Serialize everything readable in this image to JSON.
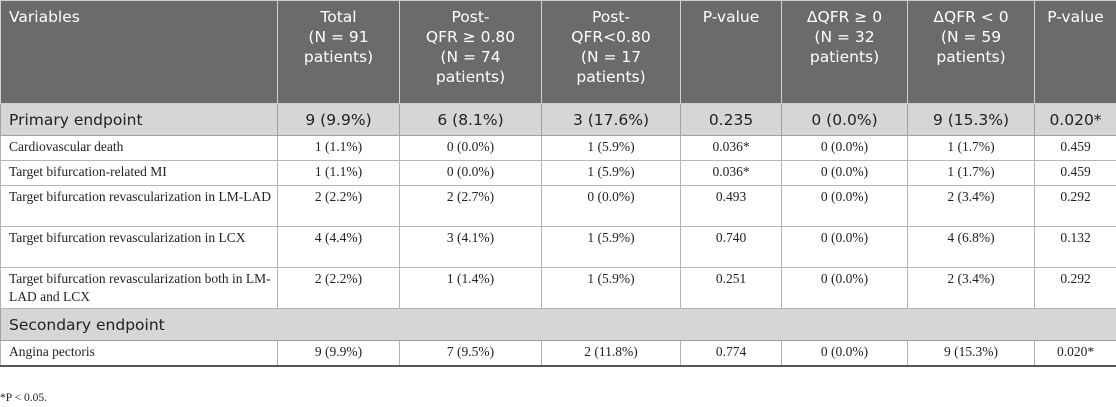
{
  "header": {
    "variables": "Variables",
    "total": [
      "Total",
      "(N = 91",
      "patients)"
    ],
    "post_ge": [
      "Post-",
      "QFR ≥ 0.80",
      "(N = 74",
      "patients)"
    ],
    "post_lt": [
      "Post-",
      "QFR<0.80",
      "(N = 17",
      "patients)"
    ],
    "p1": "P-value",
    "dq_ge": [
      "ΔQFR ≥ 0",
      "(N = 32",
      "patients)"
    ],
    "dq_lt": [
      "ΔQFR < 0",
      "(N = 59",
      "patients)"
    ],
    "p2": "P-value"
  },
  "primary": {
    "label": "Primary endpoint",
    "values": [
      "9 (9.9%)",
      "6 (8.1%)",
      "3 (17.6%)",
      "0.235",
      "0 (0.0%)",
      "9 (15.3%)",
      "0.020*"
    ],
    "rows": [
      {
        "label": "Cardiovascular death",
        "values": [
          "1 (1.1%)",
          "0 (0.0%)",
          "1 (5.9%)",
          "0.036*",
          "0 (0.0%)",
          "1 (1.7%)",
          "0.459"
        ]
      },
      {
        "label": "Target bifurcation-related MI",
        "values": [
          "1 (1.1%)",
          "0 (0.0%)",
          "1 (5.9%)",
          "0.036*",
          "0 (0.0%)",
          "1 (1.7%)",
          "0.459"
        ]
      },
      {
        "label": "Target bifurcation revascularization in LM-LAD",
        "values": [
          "2 (2.2%)",
          "2 (2.7%)",
          "0 (0.0%)",
          "0.493",
          "0 (0.0%)",
          "2 (3.4%)",
          "0.292"
        ]
      },
      {
        "label": "Target bifurcation revascularization in LCX",
        "values": [
          "4 (4.4%)",
          "3 (4.1%)",
          "1 (5.9%)",
          "0.740",
          "0 (0.0%)",
          "4 (6.8%)",
          "0.132"
        ]
      },
      {
        "label": "Target bifurcation revascularization both in LM-LAD and LCX",
        "values": [
          "2 (2.2%)",
          "1 (1.4%)",
          "1 (5.9%)",
          "0.251",
          "0 (0.0%)",
          "2 (3.4%)",
          "0.292"
        ]
      }
    ]
  },
  "secondary": {
    "label": "Secondary endpoint",
    "rows": [
      {
        "label": "Angina pectoris",
        "values": [
          "9 (9.9%)",
          "7 (9.5%)",
          "2 (11.8%)",
          "0.774",
          "0 (0.0%)",
          "9 (15.3%)",
          "0.020*"
        ]
      }
    ]
  },
  "footnote": "*P < 0.05."
}
